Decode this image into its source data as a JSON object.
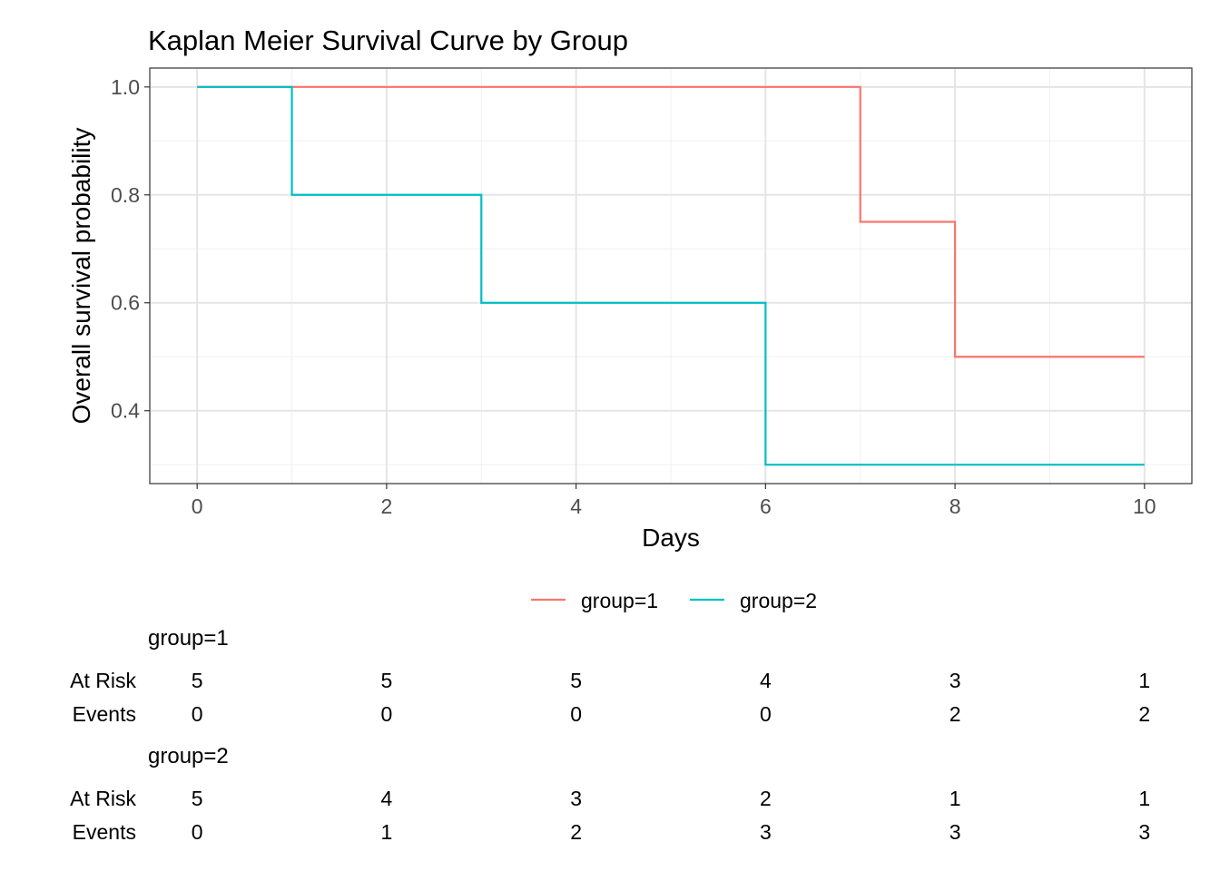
{
  "chart_data": {
    "type": "line",
    "step": true,
    "title": "Kaplan Meier Survival Curve by Group",
    "xlabel": "Days",
    "ylabel": "Overall survival probability",
    "xlim": [
      -0.5,
      10.5
    ],
    "ylim": [
      0.265,
      1.035
    ],
    "x_ticks": [
      0,
      2,
      4,
      6,
      8,
      10
    ],
    "x_tick_labels": [
      "0",
      "2",
      "4",
      "6",
      "8",
      "10"
    ],
    "y_ticks": [
      0.4,
      0.6,
      0.8,
      1.0
    ],
    "y_tick_labels": [
      "0.4",
      "0.6",
      "0.8",
      "1.0"
    ],
    "grid": true,
    "legend_position": "bottom",
    "series": [
      {
        "name": "group=1",
        "color": "#F8766D",
        "x": [
          0,
          7,
          8,
          10
        ],
        "y": [
          1.0,
          0.75,
          0.5,
          0.5
        ]
      },
      {
        "name": "group=2",
        "color": "#00BFC4",
        "x": [
          0,
          1,
          3,
          6,
          10
        ],
        "y": [
          1.0,
          0.8,
          0.6,
          0.3,
          0.3
        ]
      }
    ]
  },
  "risk_table": {
    "times": [
      0,
      2,
      4,
      6,
      8,
      10
    ],
    "row_labels": {
      "at_risk": "At Risk",
      "events": "Events"
    },
    "groups": [
      {
        "name": "group=1",
        "at_risk": [
          "5",
          "5",
          "5",
          "4",
          "3",
          "1"
        ],
        "events": [
          "0",
          "0",
          "0",
          "0",
          "2",
          "2"
        ]
      },
      {
        "name": "group=2",
        "at_risk": [
          "5",
          "4",
          "3",
          "2",
          "1",
          "1"
        ],
        "events": [
          "0",
          "1",
          "2",
          "3",
          "3",
          "3"
        ]
      }
    ]
  }
}
